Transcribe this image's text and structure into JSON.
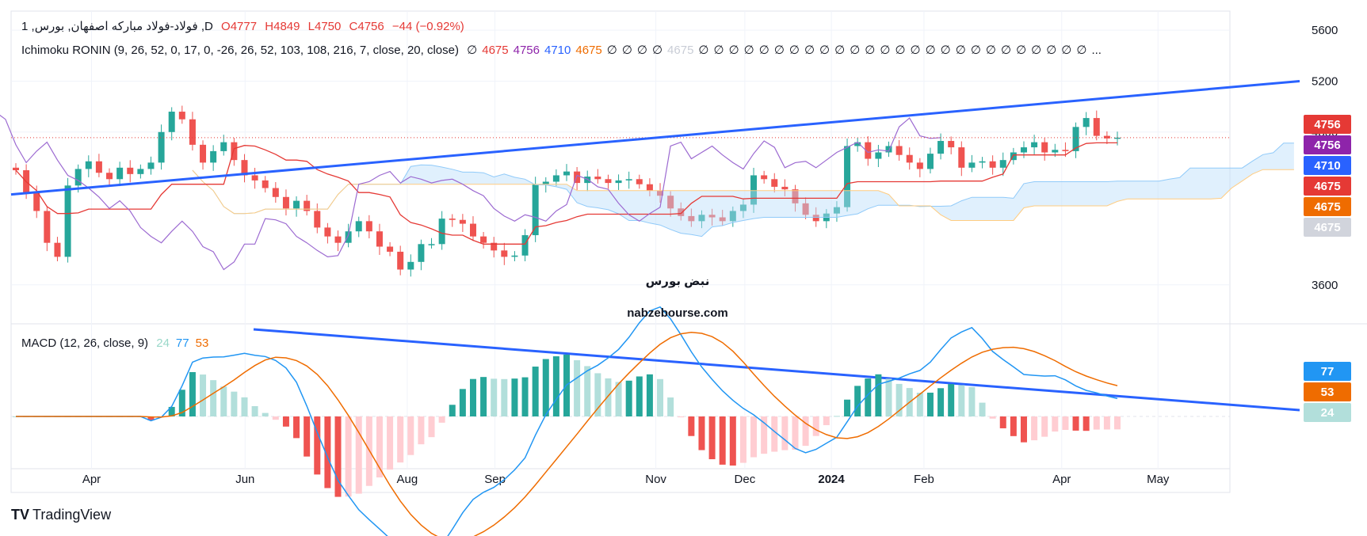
{
  "header": {
    "symbol": "1 ,فولاد-فولاد مباركه اصفهان, بورس ,D",
    "o": "O4777",
    "h": "H4849",
    "l": "L4750",
    "c": "C4756",
    "chg": "−44 (−0.92%)",
    "ichimoku_label": "Ichimoku RONIN (9, 26, 52, 0, 17, 0, -26, 26, 52, 103, 108, 216, 7, close, 20, close)",
    "ichimoku_values": [
      "∅",
      "4675",
      "4756",
      "4710",
      "4675",
      "∅",
      "∅",
      "∅",
      "∅",
      "4675",
      "∅",
      "∅",
      "∅",
      "∅",
      "∅",
      "∅",
      "∅",
      "∅",
      "∅",
      "∅",
      "∅",
      "∅",
      "∅",
      "∅",
      "∅",
      "∅",
      "∅",
      "∅",
      "∅",
      "∅",
      "∅",
      "∅",
      "∅",
      "∅",
      "∅",
      "∅",
      "..."
    ],
    "ichimoku_value_colors": [
      "#131722",
      "#e53935",
      "#8e24aa",
      "#2962ff",
      "#ef6c00",
      "#131722",
      "#131722",
      "#131722",
      "#131722",
      "#c9cdd6"
    ],
    "macd_label": "MACD (12, 26, close, 9)",
    "macd_values": [
      "24",
      "77",
      "53"
    ],
    "macd_value_colors": [
      "#9ad8c9",
      "#2196f3",
      "#ef6c00"
    ]
  },
  "chart_data": [
    {
      "type": "candlestick",
      "title": "فولاد-فولاد مباركه اصفهان",
      "x_ticks": [
        "Apr",
        "Jun",
        "Aug",
        "Sep",
        "Nov",
        "Dec",
        "2024",
        "Feb",
        "Apr",
        "May"
      ],
      "y_ticks": [
        5600,
        5200,
        4800,
        3600
      ],
      "ylim": [
        3300,
        5750
      ],
      "last": {
        "open": 4777,
        "high": 4849,
        "low": 4750,
        "close": 4756
      },
      "price_tags": [
        {
          "value": "4756",
          "color": "#e53935"
        },
        {
          "value": "4756",
          "color": "#8e24aa"
        },
        {
          "value": "4710",
          "color": "#2962ff"
        },
        {
          "value": "4675",
          "color": "#e53935"
        },
        {
          "value": "4675",
          "color": "#ef6c00"
        },
        {
          "value": "4675",
          "color": "#d1d4dc"
        }
      ],
      "close_series": [
        4500,
        4320,
        4180,
        3930,
        3820,
        4380,
        4510,
        4570,
        4480,
        4430,
        4520,
        4470,
        4510,
        4560,
        4800,
        4960,
        4900,
        4700,
        4560,
        4650,
        4720,
        4580,
        4460,
        4420,
        4360,
        4290,
        4200,
        4260,
        4180,
        4050,
        3980,
        3930,
        4020,
        4100,
        4020,
        3900,
        3860,
        3720,
        3780,
        3920,
        3920,
        4120,
        4110,
        4080,
        3980,
        3930,
        3870,
        3820,
        3830,
        3990,
        4390,
        4410,
        4460,
        4490,
        4400,
        4450,
        4430,
        4400,
        4420,
        4430,
        4390,
        4340,
        4300,
        4200,
        4140,
        4100,
        4150,
        4130,
        4100,
        4180,
        4230,
        4460,
        4430,
        4370,
        4350,
        4240,
        4150,
        4100,
        4160,
        4210,
        4690,
        4720,
        4590,
        4640,
        4690,
        4620,
        4560,
        4510,
        4630,
        4730,
        4680,
        4520,
        4560,
        4570,
        4520,
        4580,
        4640,
        4680,
        4720,
        4640,
        4660,
        4650,
        4840,
        4910,
        4770,
        4750,
        4756
      ]
    },
    {
      "type": "line",
      "title": "MACD (12, 26, close, 9)",
      "series": [
        {
          "name": "Histogram",
          "last": 24
        },
        {
          "name": "MACD",
          "last": 77
        },
        {
          "name": "Signal",
          "last": 53
        }
      ],
      "tags": [
        {
          "value": "77",
          "color": "#2196f3"
        },
        {
          "value": "53",
          "color": "#ef6c00"
        },
        {
          "value": "24",
          "color": "#b2dfdb"
        }
      ]
    }
  ],
  "watermark": {
    "text": "nabzebourse.com",
    "logo_text": "نبض بورس"
  },
  "footer": {
    "brand": "TradingView",
    "logo": "TV"
  }
}
